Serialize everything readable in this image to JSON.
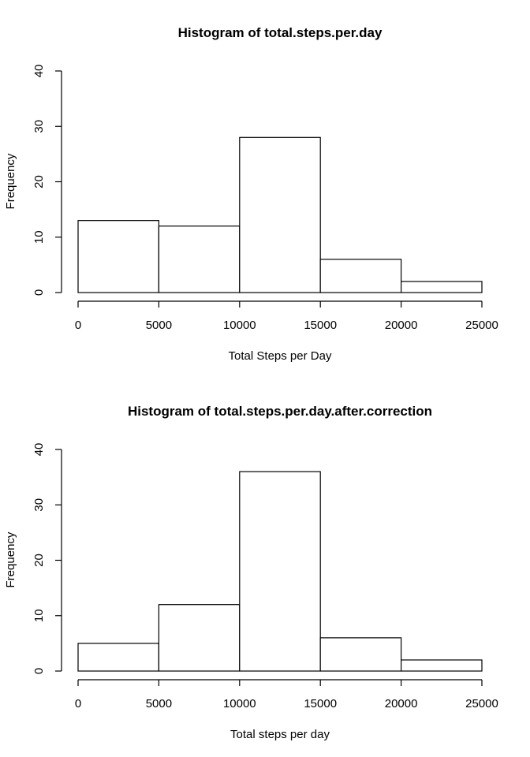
{
  "chart_data": [
    {
      "type": "bar",
      "title": "Histogram of total.steps.per.day",
      "xlabel": "Total Steps per Day",
      "ylabel": "Frequency",
      "bins": [
        [
          0,
          5000
        ],
        [
          5000,
          10000
        ],
        [
          10000,
          15000
        ],
        [
          15000,
          20000
        ],
        [
          20000,
          25000
        ]
      ],
      "values": [
        13,
        12,
        28,
        6,
        2
      ],
      "xticks": [
        0,
        5000,
        10000,
        15000,
        20000,
        25000
      ],
      "yticks": [
        0,
        10,
        20,
        30,
        40
      ],
      "xlim": [
        0,
        25000
      ],
      "ylim": [
        0,
        40
      ],
      "grid": false
    },
    {
      "type": "bar",
      "title": "Histogram of total.steps.per.day.after.correction",
      "xlabel": "Total steps per day",
      "ylabel": "Frequency",
      "bins": [
        [
          0,
          5000
        ],
        [
          5000,
          10000
        ],
        [
          10000,
          15000
        ],
        [
          15000,
          20000
        ],
        [
          20000,
          25000
        ]
      ],
      "values": [
        5,
        12,
        36,
        6,
        2
      ],
      "xticks": [
        0,
        5000,
        10000,
        15000,
        20000,
        25000
      ],
      "yticks": [
        0,
        10,
        20,
        30,
        40
      ],
      "xlim": [
        0,
        25000
      ],
      "ylim": [
        0,
        40
      ],
      "grid": false
    }
  ]
}
